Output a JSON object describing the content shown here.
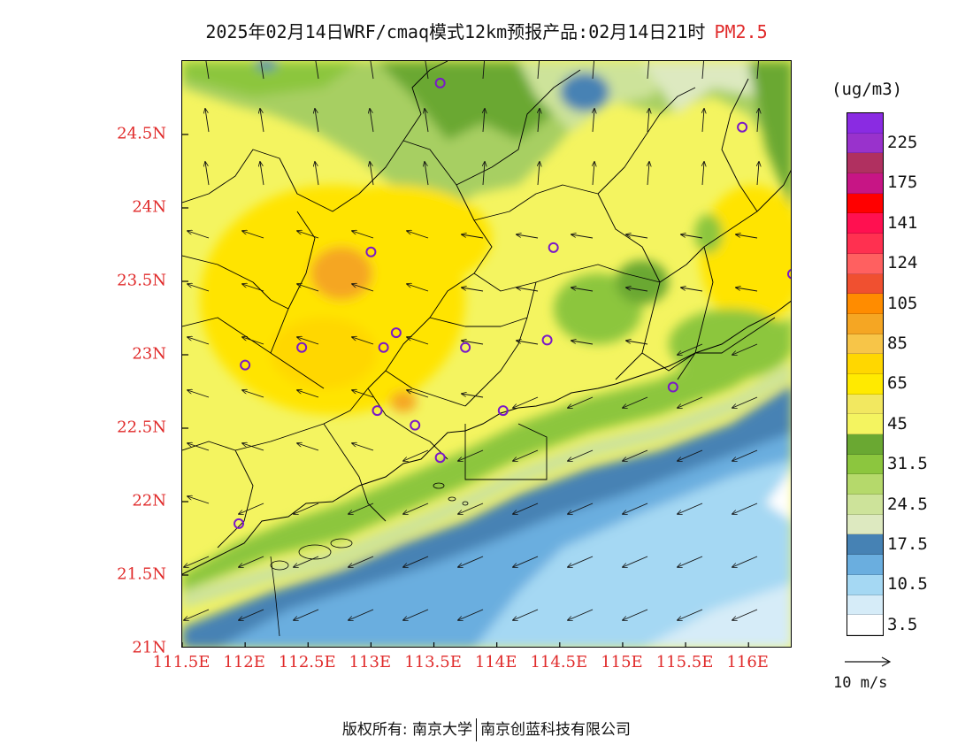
{
  "title": {
    "main": "2025年02月14日WRF/cmaq模式12km预报产品:02月14日21时",
    "variable": "PM2.5"
  },
  "axes": {
    "y_ticks": [
      {
        "label": "24.5N",
        "lat": 24.5
      },
      {
        "label": "24N",
        "lat": 24.0
      },
      {
        "label": "23.5N",
        "lat": 23.5
      },
      {
        "label": "23N",
        "lat": 23.0
      },
      {
        "label": "22.5N",
        "lat": 22.5
      },
      {
        "label": "22N",
        "lat": 22.0
      },
      {
        "label": "21.5N",
        "lat": 21.5
      },
      {
        "label": "21N",
        "lat": 21.0
      }
    ],
    "x_ticks": [
      {
        "label": "111.5E",
        "lon": 111.5
      },
      {
        "label": "112E",
        "lon": 112.0
      },
      {
        "label": "112.5E",
        "lon": 112.5
      },
      {
        "label": "113E",
        "lon": 113.0
      },
      {
        "label": "113.5E",
        "lon": 113.5
      },
      {
        "label": "114E",
        "lon": 114.0
      },
      {
        "label": "114.5E",
        "lon": 114.5
      },
      {
        "label": "115E",
        "lon": 115.0
      },
      {
        "label": "115.5E",
        "lon": 115.5
      },
      {
        "label": "116E",
        "lon": 116.0
      }
    ],
    "lon_range": [
      111.5,
      116.35
    ],
    "lat_range": [
      21.0,
      25.0
    ]
  },
  "legend": {
    "unit": "(ug/m3)",
    "colors_top_to_bottom": [
      "#8a2be2",
      "#9932cc",
      "#b03060",
      "#c71585",
      "#ff0000",
      "#ff1050",
      "#ff3050",
      "#ff6060",
      "#f05030",
      "#ff8c00",
      "#f5a623",
      "#f7c548",
      "#ffd700",
      "#ffea00",
      "#f2e860",
      "#f4f460",
      "#6aa832",
      "#8cc63e",
      "#b5d96b",
      "#cde39a",
      "#dde9c0",
      "#4682b4",
      "#6aaedf",
      "#a5d8f3",
      "#d6ecf8",
      "#ffffff"
    ],
    "labels": [
      {
        "text": "225",
        "index": 1
      },
      {
        "text": "175",
        "index": 3
      },
      {
        "text": "141",
        "index": 5
      },
      {
        "text": "124",
        "index": 7
      },
      {
        "text": "105",
        "index": 9
      },
      {
        "text": "85",
        "index": 11
      },
      {
        "text": "65",
        "index": 13
      },
      {
        "text": "45",
        "index": 15
      },
      {
        "text": "31.5",
        "index": 17
      },
      {
        "text": "24.5",
        "index": 19
      },
      {
        "text": "17.5",
        "index": 21
      },
      {
        "text": "10.5",
        "index": 23
      },
      {
        "text": "3.5",
        "index": 25
      }
    ]
  },
  "wind_reference": {
    "label": "10 m/s"
  },
  "stations": [
    {
      "lon": 113.55,
      "lat": 24.85
    },
    {
      "lon": 115.95,
      "lat": 24.55
    },
    {
      "lon": 113.0,
      "lat": 23.7
    },
    {
      "lon": 114.45,
      "lat": 23.73
    },
    {
      "lon": 116.35,
      "lat": 23.55
    },
    {
      "lon": 112.45,
      "lat": 23.05
    },
    {
      "lon": 112.0,
      "lat": 22.93
    },
    {
      "lon": 113.2,
      "lat": 23.15
    },
    {
      "lon": 113.1,
      "lat": 23.05
    },
    {
      "lon": 113.75,
      "lat": 23.05
    },
    {
      "lon": 114.4,
      "lat": 23.1
    },
    {
      "lon": 115.4,
      "lat": 22.78
    },
    {
      "lon": 113.05,
      "lat": 22.62
    },
    {
      "lon": 113.35,
      "lat": 22.52
    },
    {
      "lon": 114.05,
      "lat": 22.62
    },
    {
      "lon": 113.55,
      "lat": 22.3
    },
    {
      "lon": 111.95,
      "lat": 21.85
    }
  ],
  "footer": {
    "copyright": "版权所有: 南京大学",
    "company": "南京创蓝科技有限公司"
  }
}
